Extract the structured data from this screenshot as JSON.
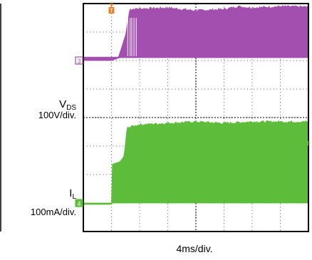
{
  "channels": {
    "vds": {
      "name": "V",
      "subscript": "DS",
      "scale": "100V/div.",
      "marker": "3",
      "color": "#a34fb0"
    },
    "il": {
      "name": "I",
      "subscript": "L",
      "scale": "100mA/div.",
      "marker": "4",
      "color": "#5dbd3a"
    }
  },
  "trigger": {
    "marker": "T",
    "color": "#f07f20"
  },
  "timebase": "4ms/div.",
  "chart_data": {
    "type": "line",
    "title": "",
    "xlabel": "4ms/div.",
    "ylabel": "",
    "divisions": {
      "x": 8,
      "y": 8
    },
    "grid": true,
    "x_unit": "div",
    "series": [
      {
        "name": "VDS",
        "unit": "div",
        "envelope_top": {
          "x": [
            0,
            1.0,
            1.25,
            1.5,
            1.65,
            2.0,
            3.0,
            4.0,
            5.0,
            5.5,
            6.0,
            7.0,
            8.0
          ],
          "y": [
            6.12,
            6.12,
            6.12,
            6.9,
            7.8,
            7.82,
            7.85,
            7.75,
            7.8,
            7.9,
            7.85,
            7.9,
            7.88
          ]
        },
        "envelope_bottom": {
          "x": [
            0,
            1.0,
            1.3,
            8.0
          ],
          "y": [
            6.0,
            6.0,
            6.1,
            6.1
          ]
        }
      },
      {
        "name": "IL",
        "unit": "div",
        "envelope_top": {
          "x": [
            0,
            1.0,
            1.0,
            1.3,
            1.45,
            1.55,
            2.0,
            3.0,
            4.0,
            5.0,
            6.0,
            7.0,
            8.0
          ],
          "y": [
            1.0,
            1.0,
            2.35,
            2.45,
            2.65,
            3.65,
            3.75,
            3.8,
            3.85,
            3.8,
            3.85,
            3.85,
            3.85
          ]
        },
        "envelope_bottom": {
          "x": [
            0,
            1.0,
            1.0,
            8.0
          ],
          "y": [
            0.95,
            0.95,
            1.0,
            1.0
          ]
        }
      }
    ]
  }
}
